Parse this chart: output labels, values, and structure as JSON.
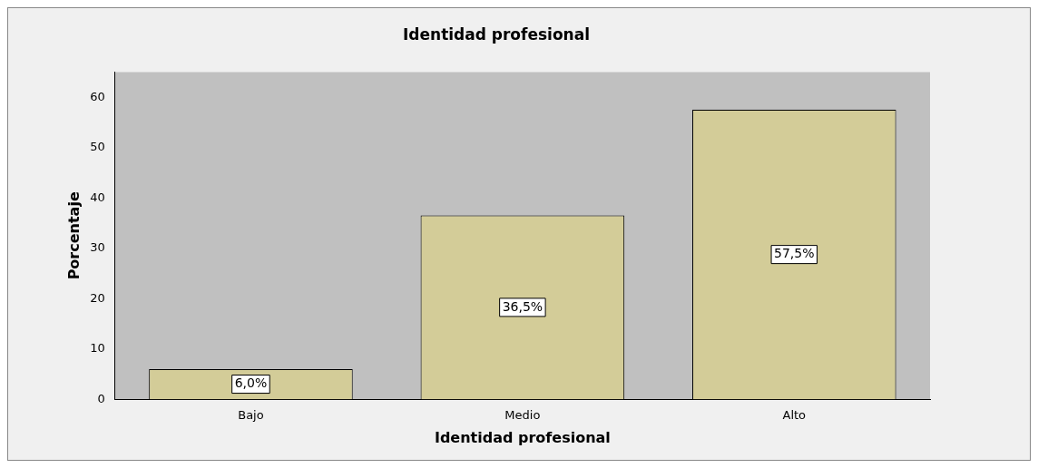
{
  "chart_data": {
    "type": "bar",
    "title": "Identidad profesional",
    "xlabel": "Identidad profesional",
    "ylabel": "Porcentaje",
    "categories": [
      "Bajo",
      "Medio",
      "Alto"
    ],
    "values": [
      6.0,
      36.5,
      57.5
    ],
    "value_labels": [
      "6,0%",
      "36,5%",
      "57,5%"
    ],
    "color": "#d3cc98",
    "ylim": [
      0,
      65
    ],
    "yticks": [
      0,
      10,
      20,
      30,
      40,
      50,
      60
    ],
    "grid": false,
    "legend": false
  }
}
